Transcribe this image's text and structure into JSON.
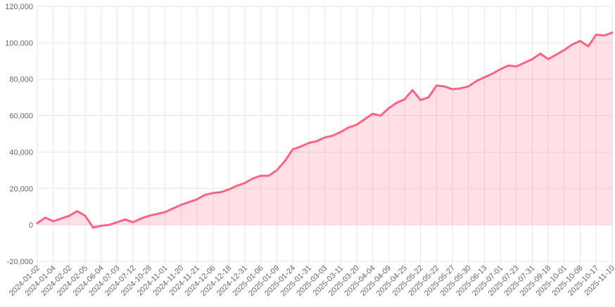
{
  "chart_data": {
    "type": "line",
    "categories": [
      "2024-01-02",
      null,
      "2024-01-04",
      null,
      "2024-02-02",
      null,
      "2024-02-05",
      null,
      "2024-06-04",
      null,
      "2024-07-03",
      null,
      "2024-07-12",
      null,
      "2024-10-28",
      null,
      "2024-11-01",
      null,
      "2024-11-20",
      null,
      "2024-11-21",
      null,
      "2024-12-06",
      null,
      "2024-12-18",
      null,
      "2024-12-31",
      null,
      "2025-01-06",
      null,
      "2025-01-09",
      null,
      "2025-01-24",
      null,
      "2025-01-31",
      null,
      "2025-03-03",
      null,
      "2025-03-11",
      null,
      "2025-03-20",
      null,
      "2025-04-04",
      null,
      "2025-04-09",
      null,
      "2025-04-25",
      null,
      "2025-05-22",
      null,
      "2025-05-22",
      null,
      "2025-05-27",
      null,
      "2025-05-30",
      null,
      "2025-06-13",
      null,
      "2025-07-01",
      null,
      "2025-07-23",
      null,
      "2025-07-31",
      null,
      "2025-09-18",
      null,
      "2025-10-01",
      null,
      "2025-10-08",
      null,
      "2025-10-17",
      null,
      "2025-11-10"
    ],
    "values": [
      1000,
      4000,
      2000,
      3500,
      5000,
      7500,
      5000,
      -1500,
      -500,
      0,
      1500,
      3000,
      1500,
      3500,
      5000,
      6000,
      7000,
      9000,
      11000,
      12500,
      14000,
      16500,
      17500,
      18000,
      19500,
      21500,
      23000,
      25500,
      27000,
      27000,
      30000,
      35000,
      41500,
      43000,
      45000,
      46000,
      48000,
      49000,
      51000,
      53500,
      55000,
      58000,
      61000,
      60000,
      64000,
      67000,
      69000,
      74000,
      68500,
      70000,
      76500,
      76000,
      74500,
      75000,
      76000,
      79000,
      81000,
      83000,
      85500,
      87500,
      87000,
      89000,
      91000,
      94000,
      91000,
      93500,
      96000,
      99000,
      101000,
      98000,
      104500,
      104000,
      105500
    ],
    "color": "#ff6384",
    "fill_color": "rgba(255,99,132,0.2)",
    "ylim": [
      -20000,
      120000
    ],
    "yticks": [
      {
        "value": -20000,
        "label": "-20,000"
      },
      0,
      {
        "value": 20000,
        "label": "20,000"
      },
      {
        "value": 40000,
        "label": "40,000"
      },
      {
        "value": 60000,
        "label": "60,000"
      },
      {
        "value": 80000,
        "label": "80,000"
      },
      {
        "value": 100000,
        "label": "100,000"
      },
      {
        "value": 120000,
        "label": "120,000"
      }
    ],
    "grid": true
  }
}
